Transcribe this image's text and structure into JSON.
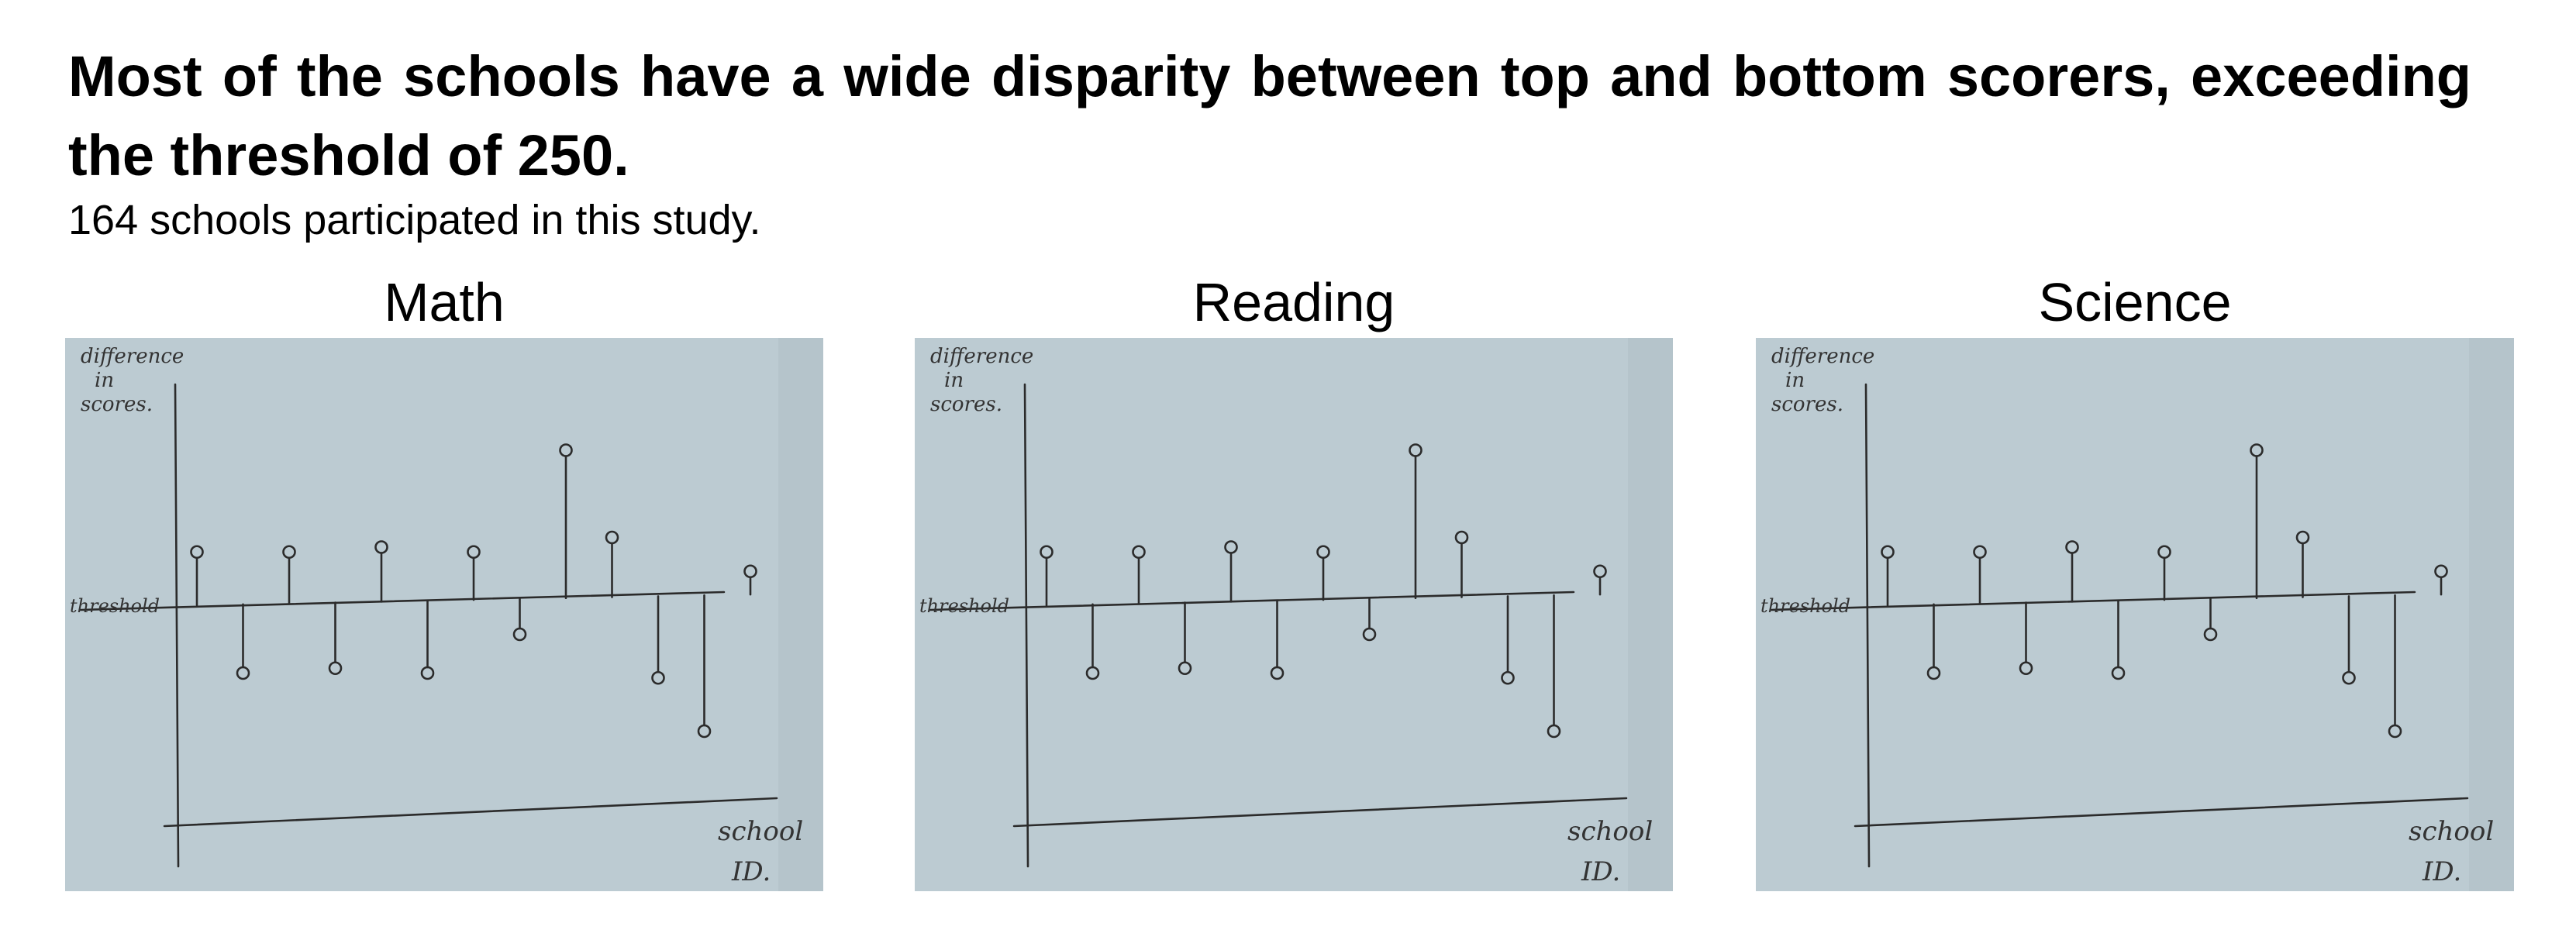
{
  "headline": "Most of the schools have a wide disparity between top and bottom scorers, exceeding the threshold of 250.",
  "subline": "164 schools participated in this study.",
  "colors": {
    "paper": "#bccbd2",
    "paper_edge": "#a9b8bf",
    "ink": "#2b2b2b"
  },
  "chart_data": [
    {
      "type": "scatter",
      "title": "Math",
      "ylabel": "difference in scores.",
      "xlabel": "school ID.",
      "threshold_label": "threshold",
      "threshold": 250,
      "x": [
        1,
        2,
        3,
        4,
        5,
        6,
        7,
        8,
        9,
        10,
        11,
        12,
        13
      ],
      "values": [
        305,
        180,
        305,
        185,
        310,
        180,
        305,
        220,
        410,
        320,
        175,
        120,
        285
      ],
      "grid": false,
      "legend": "none"
    },
    {
      "type": "scatter",
      "title": "Reading",
      "ylabel": "difference in scores.",
      "xlabel": "school ID.",
      "threshold_label": "threshold",
      "threshold": 250,
      "x": [
        1,
        2,
        3,
        4,
        5,
        6,
        7,
        8,
        9,
        10,
        11,
        12,
        13
      ],
      "values": [
        305,
        180,
        305,
        185,
        310,
        180,
        305,
        220,
        410,
        320,
        175,
        120,
        285
      ],
      "grid": false,
      "legend": "none"
    },
    {
      "type": "scatter",
      "title": "Science",
      "ylabel": "difference in scores.",
      "xlabel": "school ID.",
      "threshold_label": "threshold",
      "threshold": 250,
      "x": [
        1,
        2,
        3,
        4,
        5,
        6,
        7,
        8,
        9,
        10,
        11,
        12,
        13
      ],
      "values": [
        305,
        180,
        305,
        185,
        310,
        180,
        305,
        220,
        410,
        320,
        175,
        120,
        285
      ],
      "grid": false,
      "legend": "none"
    }
  ]
}
